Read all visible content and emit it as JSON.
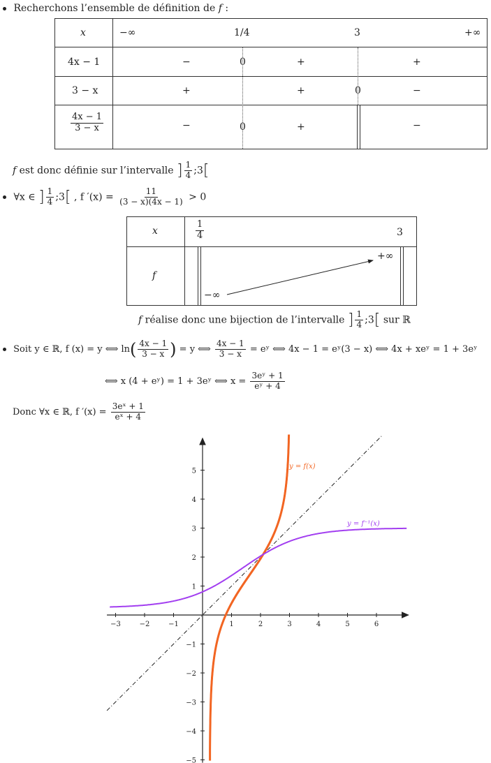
{
  "section1": {
    "intro": "Recherchons l’ensemble de définition de",
    "intro_var": "f",
    "intro_colon": ":"
  },
  "sign_table": {
    "header_x": "x",
    "header_values": [
      "−∞",
      "1/4",
      "3",
      "+∞"
    ],
    "rows": [
      {
        "label": "4x − 1",
        "cells": [
          "−",
          "0",
          "+",
          "+"
        ]
      },
      {
        "label": "3 − x",
        "cells": [
          "+",
          "+",
          "0",
          "−"
        ]
      },
      {
        "label_num": "4x − 1",
        "label_den": "3 − x",
        "cells": [
          "−",
          "0",
          "+",
          "−"
        ]
      }
    ]
  },
  "domain_line": {
    "prefix_var": "f",
    "text": "est donc définie sur l’intervalle",
    "frac_num": "1",
    "frac_den": "4",
    "sep": ";",
    "end": "3"
  },
  "derivative_line": {
    "forall": "∀x ∈",
    "frac_num": "1",
    "frac_den": "4",
    "sep": ";",
    "end": "3",
    "fprime": ", f ′(x) =",
    "d_num": "11",
    "d_den": "(3 − x)(4x − 1)",
    "gt": "> 0"
  },
  "variation_table": {
    "x_label": "x",
    "f_label": "f",
    "x_start_num": "1",
    "x_start_den": "4",
    "x_end": "3",
    "low": "−∞",
    "high": "+∞"
  },
  "bijection_line": {
    "var": "f",
    "text": "réalise donc une bijection de l’intervalle",
    "frac_num": "1",
    "frac_den": "4",
    "sep": ";",
    "end": "3",
    "sur": "sur ℝ"
  },
  "solve": {
    "line1_a": "Soit y ∈ ℝ, f (x) = y ⟺ ln",
    "frac1_num": "4x − 1",
    "frac1_den": "3 − x",
    "line1_b": "= y ⟺",
    "frac2_num": "4x − 1",
    "frac2_den": "3 − x",
    "line1_c": "= eʸ ⟺ 4x − 1 = eʸ(3 − x) ⟺ 4x + xeʸ = 1 + 3eʸ",
    "line2_a": "⟺ x (4 + eʸ) = 1 + 3eʸ ⟺ x =",
    "frac3_num": "3eʸ + 1",
    "frac3_den": "eʸ + 4",
    "concl_a": "Donc ∀x ∈ ℝ, f ′(x) =",
    "frac4_num": "3eˣ + 1",
    "frac4_den": "eˣ + 4"
  },
  "graph": {
    "x_ticks": [
      "−3",
      "−2",
      "−1",
      "1",
      "2",
      "3",
      "4",
      "5",
      "6"
    ],
    "y_ticks": [
      "5",
      "4",
      "3",
      "2",
      "1",
      "−1",
      "−2",
      "−3",
      "−4",
      "−5"
    ],
    "label_f": "y = f(x)",
    "label_finv": "y = f⁻¹(x)",
    "color_f": "#f26522",
    "color_finv": "#a23ef0",
    "color_axis": "#222222"
  }
}
